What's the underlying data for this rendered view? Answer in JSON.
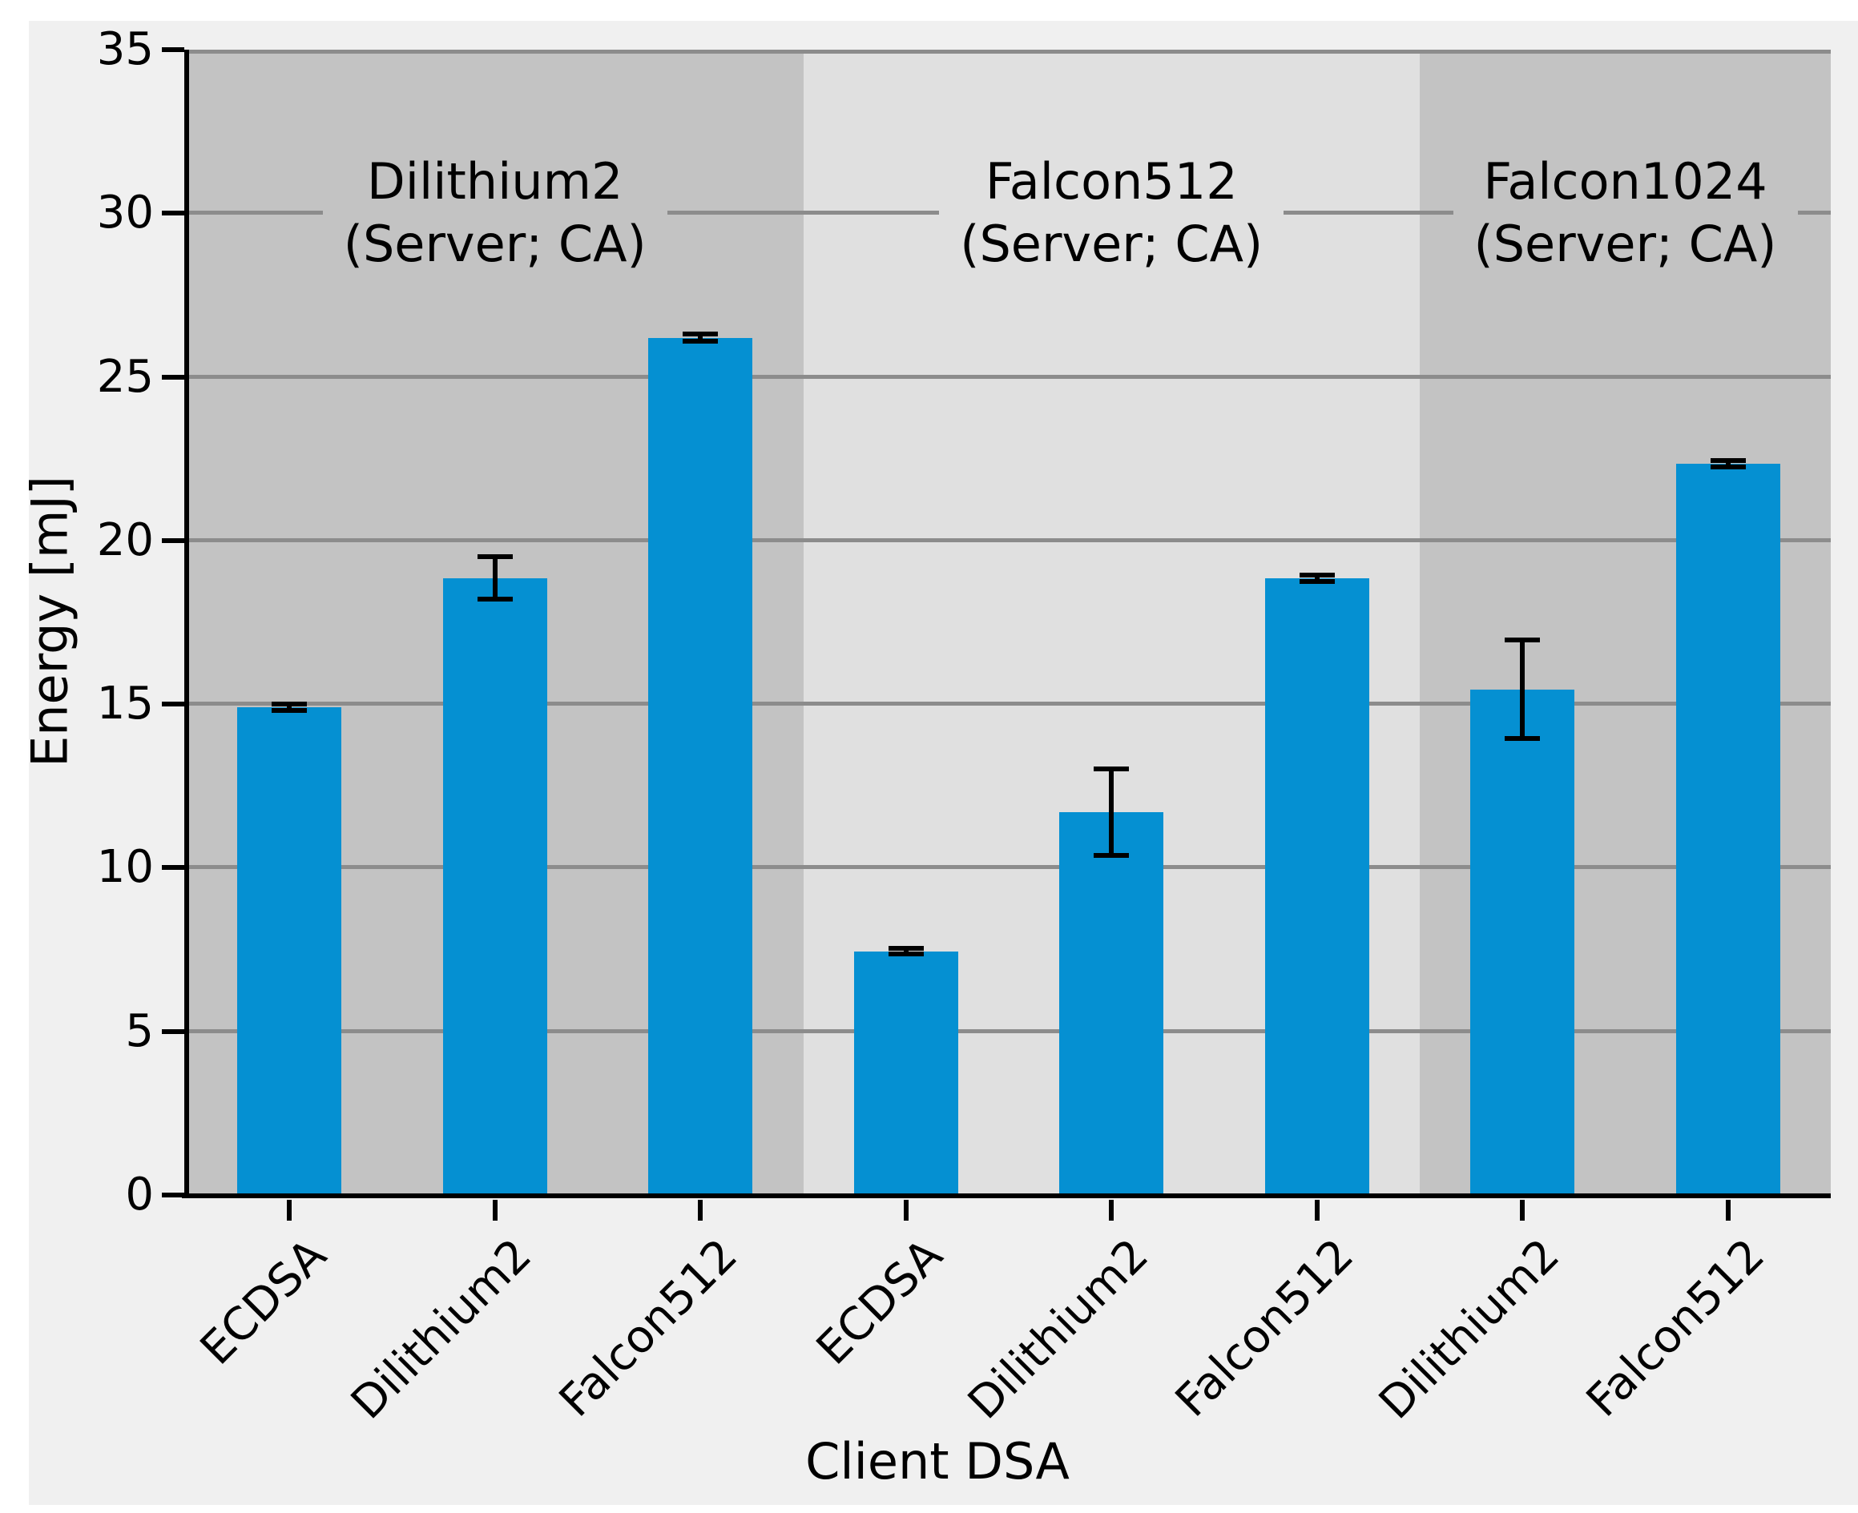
{
  "figure": {
    "background": "#f0f0f0",
    "plot_band_dark": "#c3c3c3",
    "plot_band_light": "#e0e0e0",
    "gridline_color": "#8c8c8c",
    "bar_color": "#0590d2",
    "error_color": "#000000"
  },
  "chart_data": {
    "type": "bar",
    "title": "",
    "xlabel": "Client DSA",
    "ylabel": "Energy [mJ]",
    "ylim": [
      0,
      35
    ],
    "yticks": [
      0,
      5,
      10,
      15,
      20,
      25,
      30,
      35
    ],
    "grid": true,
    "legend": false,
    "groups": [
      {
        "title_line1": "Dilithium2",
        "title_line2": "(Server; CA)",
        "shade": "dark",
        "bars": [
          {
            "category": "ECDSA",
            "value": 14.9,
            "error": 0.1
          },
          {
            "category": "Dilithium2",
            "value": 18.85,
            "error": 0.65
          },
          {
            "category": "Falcon512",
            "value": 26.2,
            "error": 0.12
          }
        ]
      },
      {
        "title_line1": "Falcon512",
        "title_line2": "(Server; CA)",
        "shade": "light",
        "bars": [
          {
            "category": "ECDSA",
            "value": 7.45,
            "error": 0.08
          },
          {
            "category": "Dilithium2",
            "value": 11.7,
            "error": 1.33
          },
          {
            "category": "Falcon512",
            "value": 18.85,
            "error": 0.09
          }
        ]
      },
      {
        "title_line1": "Falcon1024",
        "title_line2": "(Server; CA)",
        "shade": "dark",
        "bars": [
          {
            "category": "Dilithium2",
            "value": 15.45,
            "error": 1.5
          },
          {
            "category": "Falcon512",
            "value": 22.35,
            "error": 0.1
          }
        ]
      }
    ]
  }
}
